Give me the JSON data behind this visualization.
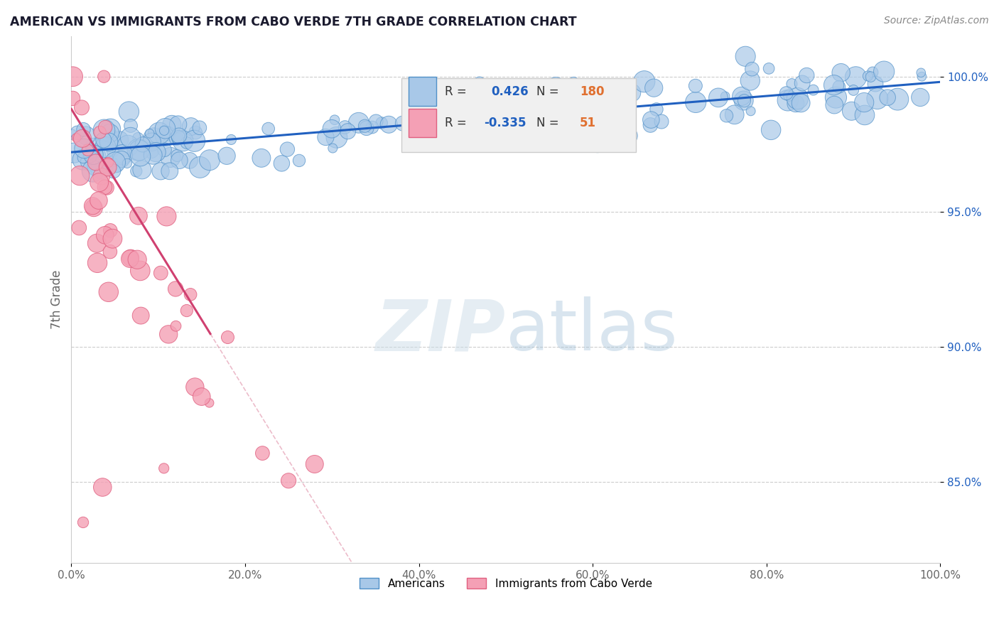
{
  "title": "AMERICAN VS IMMIGRANTS FROM CABO VERDE 7TH GRADE CORRELATION CHART",
  "source_text": "Source: ZipAtlas.com",
  "ylabel": "7th Grade",
  "xlim": [
    0.0,
    100.0
  ],
  "ylim": [
    82.0,
    101.5
  ],
  "yticks": [
    85.0,
    90.0,
    95.0,
    100.0
  ],
  "xticks": [
    0.0,
    20.0,
    40.0,
    60.0,
    80.0,
    100.0
  ],
  "xtick_labels": [
    "0.0%",
    "20.0%",
    "40.0%",
    "60.0%",
    "80.0%",
    "100.0%"
  ],
  "ytick_labels": [
    "85.0%",
    "90.0%",
    "95.0%",
    "100.0%"
  ],
  "american_color": "#a8c8e8",
  "cabo_verde_color": "#f4a0b5",
  "american_edge_color": "#5090c8",
  "cabo_verde_edge_color": "#e06080",
  "blue_line_color": "#2060c0",
  "pink_line_color": "#d04070",
  "diag_line_color": "#e090a8",
  "legend_R_american_val": "0.426",
  "legend_N_american_val": "180",
  "legend_R_cabo_val": "-0.335",
  "legend_N_cabo_val": "51",
  "watermark_zip": "ZIP",
  "watermark_atlas": "atlas",
  "legend_label_american": "Americans",
  "legend_label_cabo": "Immigrants from Cabo Verde",
  "grid_color": "#cccccc",
  "bg_color": "#ffffff",
  "title_color": "#1a1a2e",
  "axis_label_color": "#666666",
  "tick_color": "#666666",
  "legend_box_color": "#f0f0f0",
  "legend_box_edge": "#cccccc",
  "blue_text_color": "#2060c0",
  "orange_text_color": "#e07030"
}
